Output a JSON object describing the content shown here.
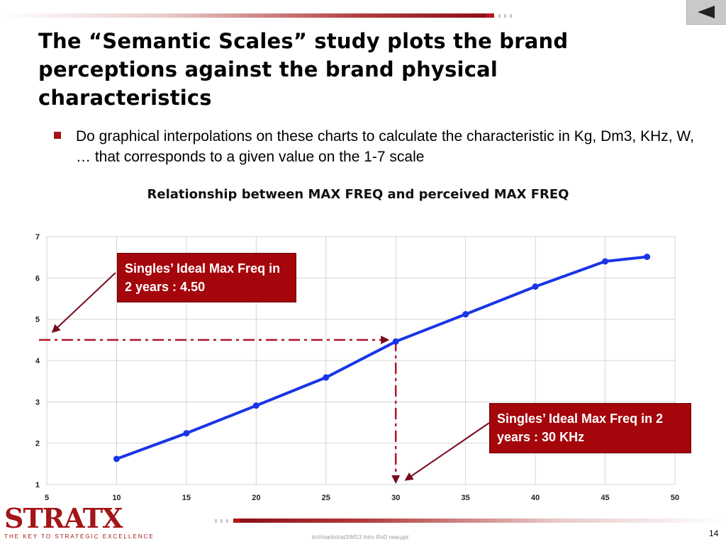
{
  "slide": {
    "title": "The “Semantic Scales” study plots the brand perceptions against the brand physical characteristics",
    "bullet": "Do graphical interpolations on these charts to calculate the characteristic in Kg, Dm3, KHz, W, … that corresponds to a given value on the 1-7 scale",
    "callout_1": "Singles’ Ideal Max Freq in 2 years : 4.50",
    "callout_2": "Singles’ Ideal Max Freq in 2 years : 30 KHz",
    "footer_path": "k/rt/markstrat3/MS3 Intro RnD new.ppt",
    "page_number": "14",
    "logo_text": "STRATX",
    "logo_tagline": "THE KEY TO STRATEGIC EXCELLENCE",
    "back_button": "back-icon"
  },
  "colors": {
    "accent": "#a31519",
    "callout": "#a4060c",
    "series": "#1a35e6",
    "guide": "#b0142a"
  },
  "chart_data": {
    "type": "line",
    "title": "Relationship between MAX FREQ and perceived MAX FREQ",
    "xlabel": "",
    "ylabel": "",
    "xlim": [
      5,
      50
    ],
    "ylim": [
      1,
      7
    ],
    "xticks": [
      5,
      10,
      15,
      20,
      25,
      30,
      35,
      40,
      45,
      50
    ],
    "yticks": [
      1,
      2,
      3,
      4,
      5,
      6,
      7
    ],
    "grid": true,
    "series": [
      {
        "x": [
          10,
          15,
          20,
          25,
          30,
          35,
          40,
          45,
          48
        ],
        "y": [
          1.62,
          2.24,
          2.91,
          3.59,
          4.46,
          5.12,
          5.79,
          6.4,
          6.51
        ]
      }
    ],
    "reference": {
      "x": 30,
      "y": 4.5
    }
  }
}
